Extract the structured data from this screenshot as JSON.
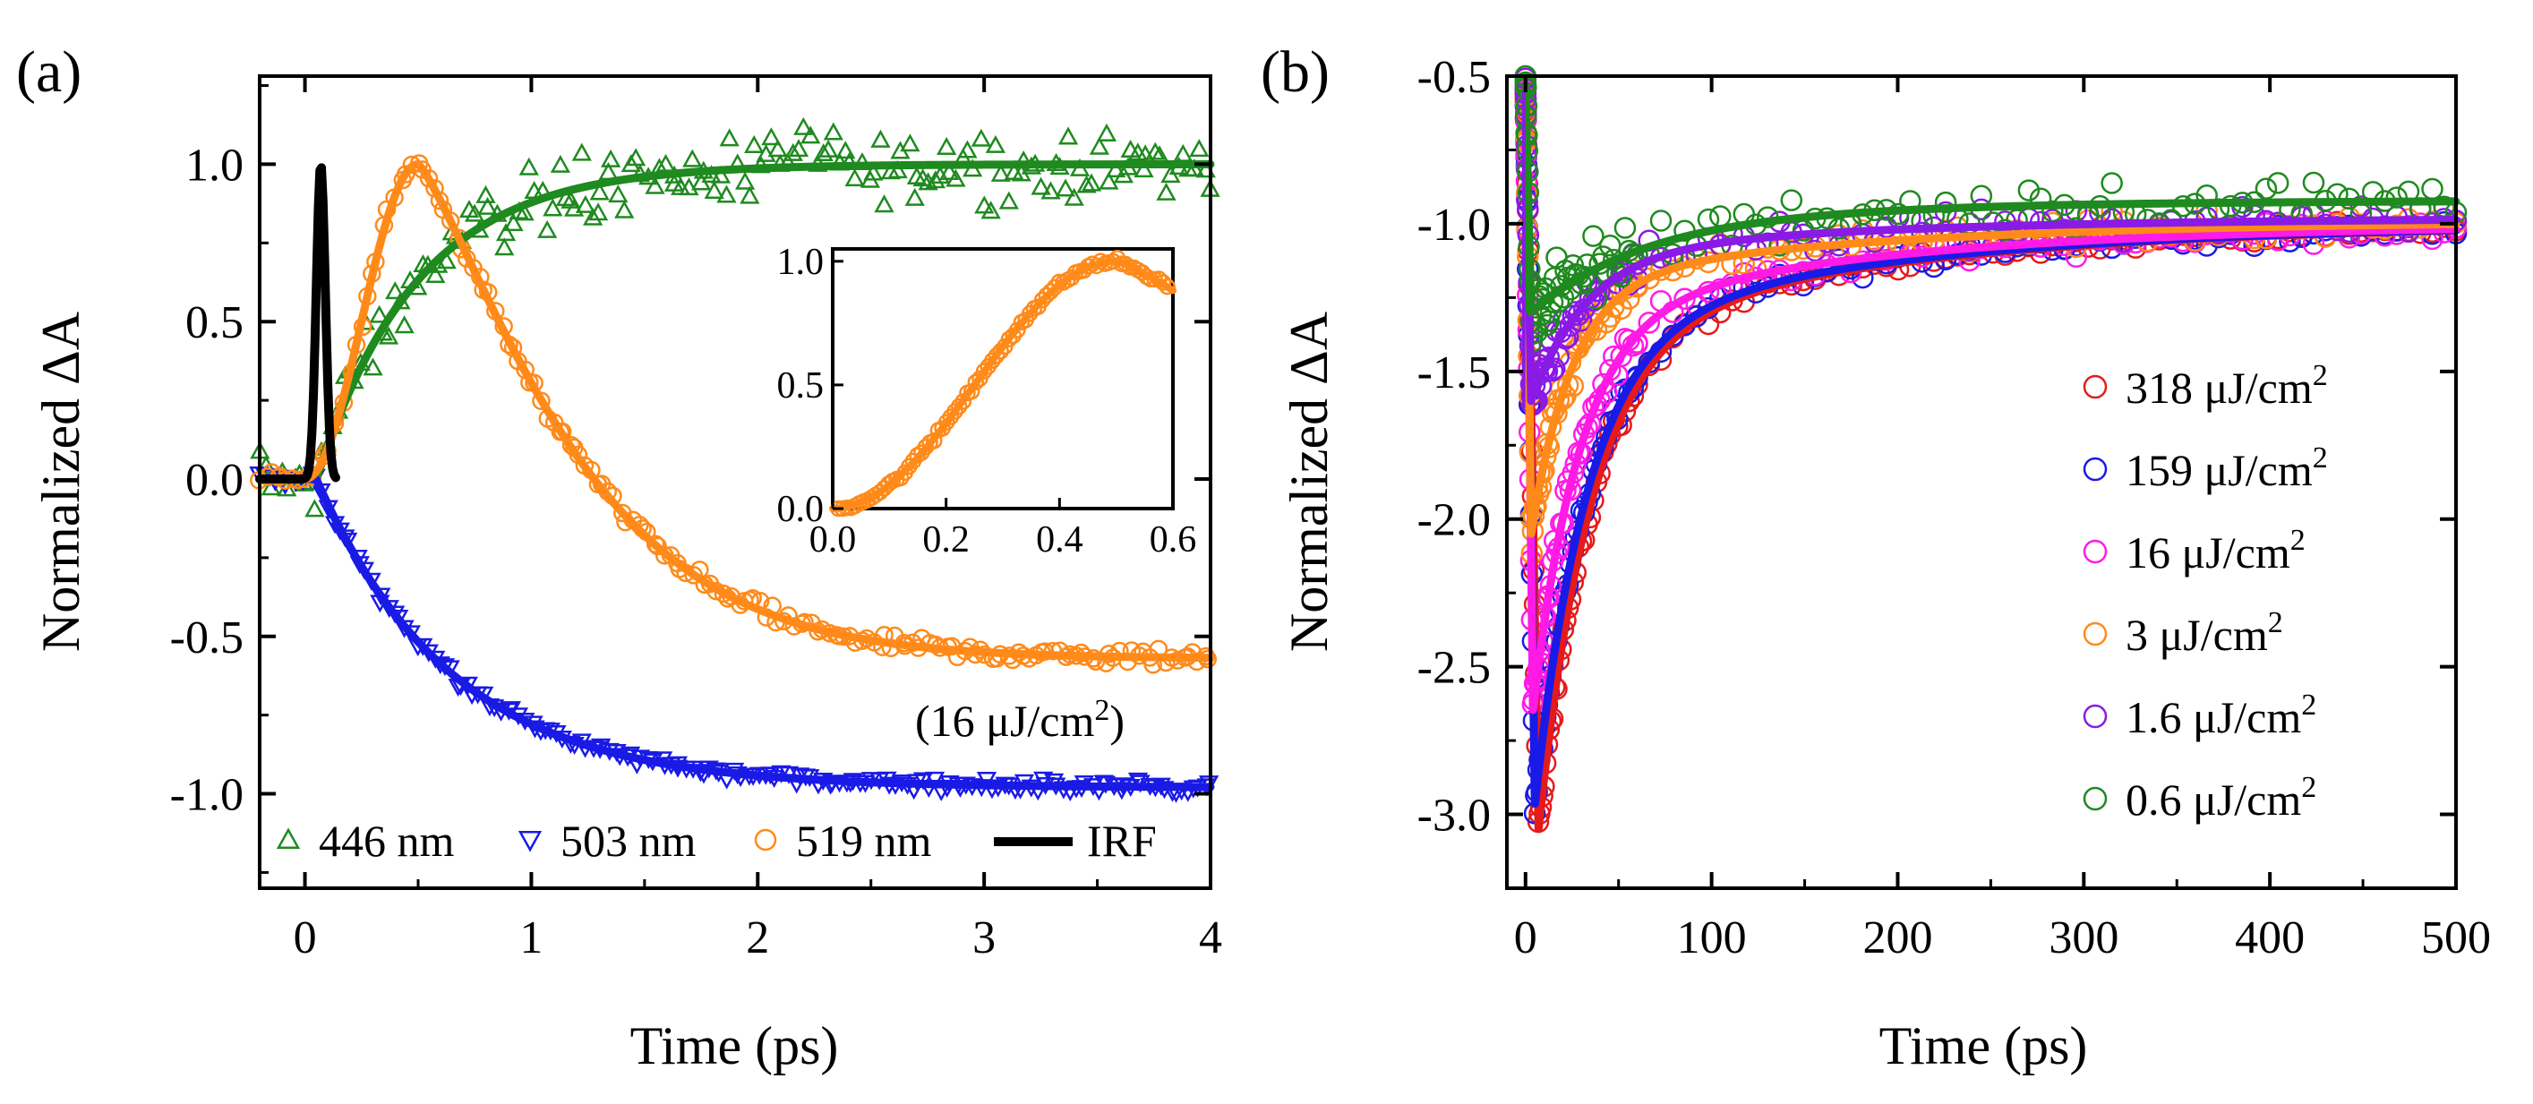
{
  "chart_data": [
    {
      "panel": "(a)",
      "type": "scatter",
      "xlabel": "Time (ps)",
      "ylabel": "Normalized ΔA",
      "xlim": [
        -0.2,
        4.0
      ],
      "ylim": [
        -1.3,
        1.28
      ],
      "xticks": [
        "0",
        "1",
        "2",
        "3",
        "4"
      ],
      "yticks": [
        "-1.0",
        "-0.5",
        "0.0",
        "0.5",
        "1.0"
      ],
      "annotation": "(16 μJ/cm",
      "annotation_sup": "2",
      "annotation_close": ")",
      "legend": [
        "446 nm",
        "503 nm",
        "519 nm",
        "IRF"
      ],
      "series": [
        {
          "name": "446 nm",
          "color": "#1f8a1f",
          "marker": "triangle-up",
          "fit": "rise",
          "amplitude": 1.0,
          "tau": 0.45,
          "t0": 0.05,
          "noise": 0.08
        },
        {
          "name": "503 nm",
          "color": "#1a1ae6",
          "marker": "triangle-down",
          "fit": "rise",
          "amplitude": -0.98,
          "tau": 0.6,
          "t0": 0.05,
          "noise": 0.015
        },
        {
          "name": "519 nm",
          "color": "#ff8a1a",
          "marker": "circle",
          "fit": "peak",
          "peak_time": 0.5,
          "peak_value": 1.0,
          "plateau": -0.57,
          "tau": 0.45,
          "noise": 0.02
        },
        {
          "name": "IRF",
          "color": "#000000",
          "marker": "line",
          "fit": "gauss",
          "center": 0.07,
          "sigma": 0.02,
          "amplitude": 1.0
        }
      ],
      "inset": {
        "xlim": [
          0.0,
          0.6
        ],
        "ylim": [
          0.0,
          1.05
        ],
        "xticks": [
          "0.0",
          "0.2",
          "0.4",
          "0.6"
        ],
        "yticks": [
          "0.0",
          "0.5",
          "1.0"
        ],
        "series": "519 nm"
      }
    },
    {
      "panel": "(b)",
      "type": "scatter",
      "xlabel": "Time (ps)",
      "ylabel": "Normalized ΔA",
      "xlim": [
        -10,
        500
      ],
      "ylim": [
        -3.25,
        -0.5
      ],
      "xticks": [
        "0",
        "100",
        "200",
        "300",
        "400",
        "500"
      ],
      "yticks": [
        "-0.5",
        "-1.0",
        "-1.5",
        "-2.0",
        "-2.5",
        "-3.0"
      ],
      "legend_unit": "μJ/cm",
      "legend_sup": "2",
      "series": [
        {
          "name": "318",
          "color": "#e61a1a",
          "min": -3.05,
          "tmin": 7,
          "tau1": 28,
          "plateau": -1.0,
          "noise": 0.03
        },
        {
          "name": "159",
          "color": "#1a1ae6",
          "min": -2.97,
          "tmin": 5,
          "tau1": 28,
          "plateau": -1.0,
          "noise": 0.03
        },
        {
          "name": "16",
          "color": "#ff1ae6",
          "min": -2.65,
          "tmin": 4,
          "tau1": 25,
          "plateau": -1.0,
          "noise": 0.04
        },
        {
          "name": "3",
          "color": "#ff8a1a",
          "min": -2.05,
          "tmin": 3,
          "tau1": 22,
          "plateau": -0.99,
          "noise": 0.05
        },
        {
          "name": "1.6",
          "color": "#8a1ae6",
          "min": -1.6,
          "tmin": 3,
          "tau1": 30,
          "plateau": -0.98,
          "noise": 0.06
        },
        {
          "name": "0.6",
          "color": "#1f8a1f",
          "min": -1.3,
          "tmin": 3,
          "tau1": 60,
          "plateau": -0.92,
          "noise": 0.08
        }
      ]
    }
  ]
}
